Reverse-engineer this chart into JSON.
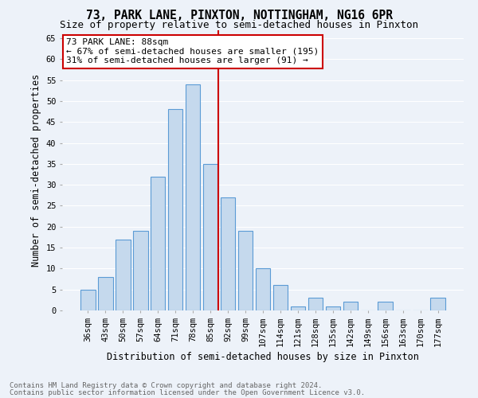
{
  "title": "73, PARK LANE, PINXTON, NOTTINGHAM, NG16 6PR",
  "subtitle": "Size of property relative to semi-detached houses in Pinxton",
  "xlabel": "Distribution of semi-detached houses by size in Pinxton",
  "ylabel": "Number of semi-detached properties",
  "categories": [
    "36sqm",
    "43sqm",
    "50sqm",
    "57sqm",
    "64sqm",
    "71sqm",
    "78sqm",
    "85sqm",
    "92sqm",
    "99sqm",
    "107sqm",
    "114sqm",
    "121sqm",
    "128sqm",
    "135sqm",
    "142sqm",
    "149sqm",
    "156sqm",
    "163sqm",
    "170sqm",
    "177sqm"
  ],
  "values": [
    5,
    8,
    17,
    19,
    32,
    48,
    54,
    35,
    27,
    19,
    10,
    6,
    1,
    3,
    1,
    2,
    0,
    2,
    0,
    0,
    3
  ],
  "bar_color": "#c5d9ed",
  "bar_edge_color": "#5b9bd5",
  "annotation_title": "73 PARK LANE: 88sqm",
  "annotation_line1": "← 67% of semi-detached houses are smaller (195)",
  "annotation_line2": "31% of semi-detached houses are larger (91) →",
  "annotation_box_color": "#ffffff",
  "annotation_box_edge_color": "#cc0000",
  "vline_color": "#cc0000",
  "vline_x": 7.43,
  "ylim": [
    0,
    67
  ],
  "yticks": [
    0,
    5,
    10,
    15,
    20,
    25,
    30,
    35,
    40,
    45,
    50,
    55,
    60,
    65
  ],
  "footnote1": "Contains HM Land Registry data © Crown copyright and database right 2024.",
  "footnote2": "Contains public sector information licensed under the Open Government Licence v3.0.",
  "bg_color": "#edf2f9",
  "grid_color": "#ffffff",
  "title_fontsize": 10.5,
  "subtitle_fontsize": 9,
  "tick_fontsize": 7.5,
  "ylabel_fontsize": 8.5,
  "xlabel_fontsize": 8.5,
  "footnote_fontsize": 6.5,
  "annot_fontsize": 8
}
